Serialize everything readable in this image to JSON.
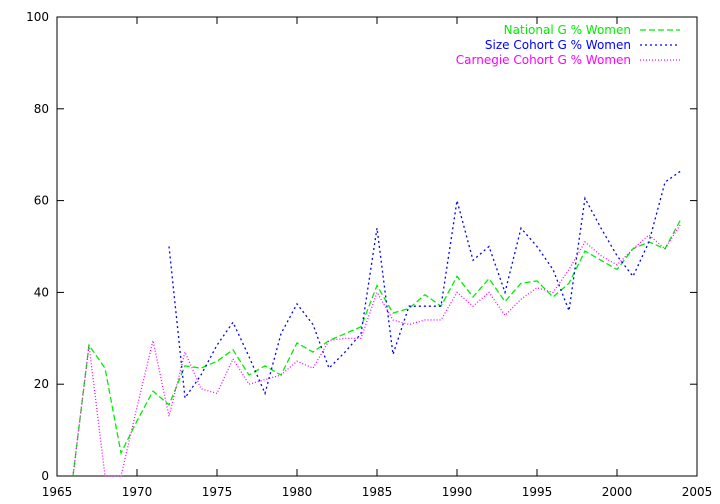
{
  "chart_data": {
    "type": "line",
    "title": "",
    "xlabel": "",
    "ylabel": "",
    "xlim": [
      1965,
      2005
    ],
    "ylim": [
      0,
      100
    ],
    "xticks": [
      1965,
      1970,
      1975,
      1980,
      1985,
      1990,
      1995,
      2000,
      2005
    ],
    "yticks": [
      0,
      20,
      40,
      60,
      80,
      100
    ],
    "grid": false,
    "legend_position": "top-right",
    "series": [
      {
        "name": "National G % Women",
        "color": "#00ee00",
        "dash": "6,3",
        "points": [
          [
            1966,
            0
          ],
          [
            1967,
            28.5
          ],
          [
            1968,
            23.5
          ],
          [
            1969,
            5
          ],
          [
            1970,
            12
          ],
          [
            1971,
            18.5
          ],
          [
            1972,
            15.5
          ],
          [
            1973,
            24
          ],
          [
            1974,
            23.5
          ],
          [
            1975,
            25
          ],
          [
            1976,
            27.5
          ],
          [
            1977,
            22
          ],
          [
            1978,
            24
          ],
          [
            1979,
            22
          ],
          [
            1980,
            29
          ],
          [
            1981,
            27
          ],
          [
            1982,
            29.5
          ],
          [
            1983,
            31
          ],
          [
            1984,
            32.5
          ],
          [
            1985,
            41.5
          ],
          [
            1986,
            35.5
          ],
          [
            1987,
            36.5
          ],
          [
            1988,
            39.5
          ],
          [
            1989,
            37
          ],
          [
            1990,
            43.5
          ],
          [
            1991,
            39
          ],
          [
            1992,
            43
          ],
          [
            1993,
            38
          ],
          [
            1994,
            42
          ],
          [
            1995,
            42.5
          ],
          [
            1996,
            39
          ],
          [
            1997,
            42
          ],
          [
            1998,
            49
          ],
          [
            1999,
            47
          ],
          [
            2000,
            45
          ],
          [
            2001,
            49.5
          ],
          [
            2002,
            51
          ],
          [
            2003,
            49.5
          ],
          [
            2004,
            56
          ]
        ]
      },
      {
        "name": "Size Cohort G % Women",
        "color": "#0000ff",
        "dash": "2,3",
        "points": [
          [
            1972,
            50
          ],
          [
            1973,
            17
          ],
          [
            1974,
            22
          ],
          [
            1975,
            28.5
          ],
          [
            1976,
            33.5
          ],
          [
            1977,
            26
          ],
          [
            1978,
            18
          ],
          [
            1979,
            31
          ],
          [
            1980,
            37.5
          ],
          [
            1981,
            33
          ],
          [
            1982,
            23.5
          ],
          [
            1983,
            27
          ],
          [
            1984,
            31
          ],
          [
            1985,
            54
          ],
          [
            1986,
            26.5
          ],
          [
            1987,
            37
          ],
          [
            1988,
            37
          ],
          [
            1989,
            37
          ],
          [
            1990,
            60
          ],
          [
            1991,
            47
          ],
          [
            1992,
            50
          ],
          [
            1993,
            40
          ],
          [
            1994,
            54
          ],
          [
            1995,
            50
          ],
          [
            1996,
            45
          ],
          [
            1997,
            36
          ],
          [
            1998,
            60.5
          ],
          [
            1999,
            54
          ],
          [
            2000,
            48
          ],
          [
            2001,
            43.5
          ],
          [
            2002,
            51
          ],
          [
            2003,
            64
          ],
          [
            2004,
            66.5
          ]
        ]
      },
      {
        "name": "Carnegie Cohort G % Women",
        "color": "#ff00ff",
        "dash": "1,2",
        "points": [
          [
            1966,
            0
          ],
          [
            1967,
            28.5
          ],
          [
            1968,
            0
          ],
          [
            1969,
            0
          ],
          [
            1970,
            15
          ],
          [
            1971,
            29.5
          ],
          [
            1972,
            13
          ],
          [
            1973,
            27
          ],
          [
            1974,
            19
          ],
          [
            1975,
            18
          ],
          [
            1976,
            25.5
          ],
          [
            1977,
            20
          ],
          [
            1978,
            21
          ],
          [
            1979,
            22
          ],
          [
            1980,
            25
          ],
          [
            1981,
            23.5
          ],
          [
            1982,
            29.5
          ],
          [
            1983,
            30
          ],
          [
            1984,
            30
          ],
          [
            1985,
            40
          ],
          [
            1986,
            34
          ],
          [
            1987,
            33
          ],
          [
            1988,
            34
          ],
          [
            1989,
            34
          ],
          [
            1990,
            40
          ],
          [
            1991,
            37
          ],
          [
            1992,
            40
          ],
          [
            1993,
            35
          ],
          [
            1994,
            38.5
          ],
          [
            1995,
            41
          ],
          [
            1996,
            40
          ],
          [
            1997,
            45
          ],
          [
            1998,
            51
          ],
          [
            1999,
            48
          ],
          [
            2000,
            46
          ],
          [
            2001,
            49.5
          ],
          [
            2002,
            52.5
          ],
          [
            2003,
            49.5
          ],
          [
            2004,
            55
          ]
        ]
      }
    ]
  }
}
